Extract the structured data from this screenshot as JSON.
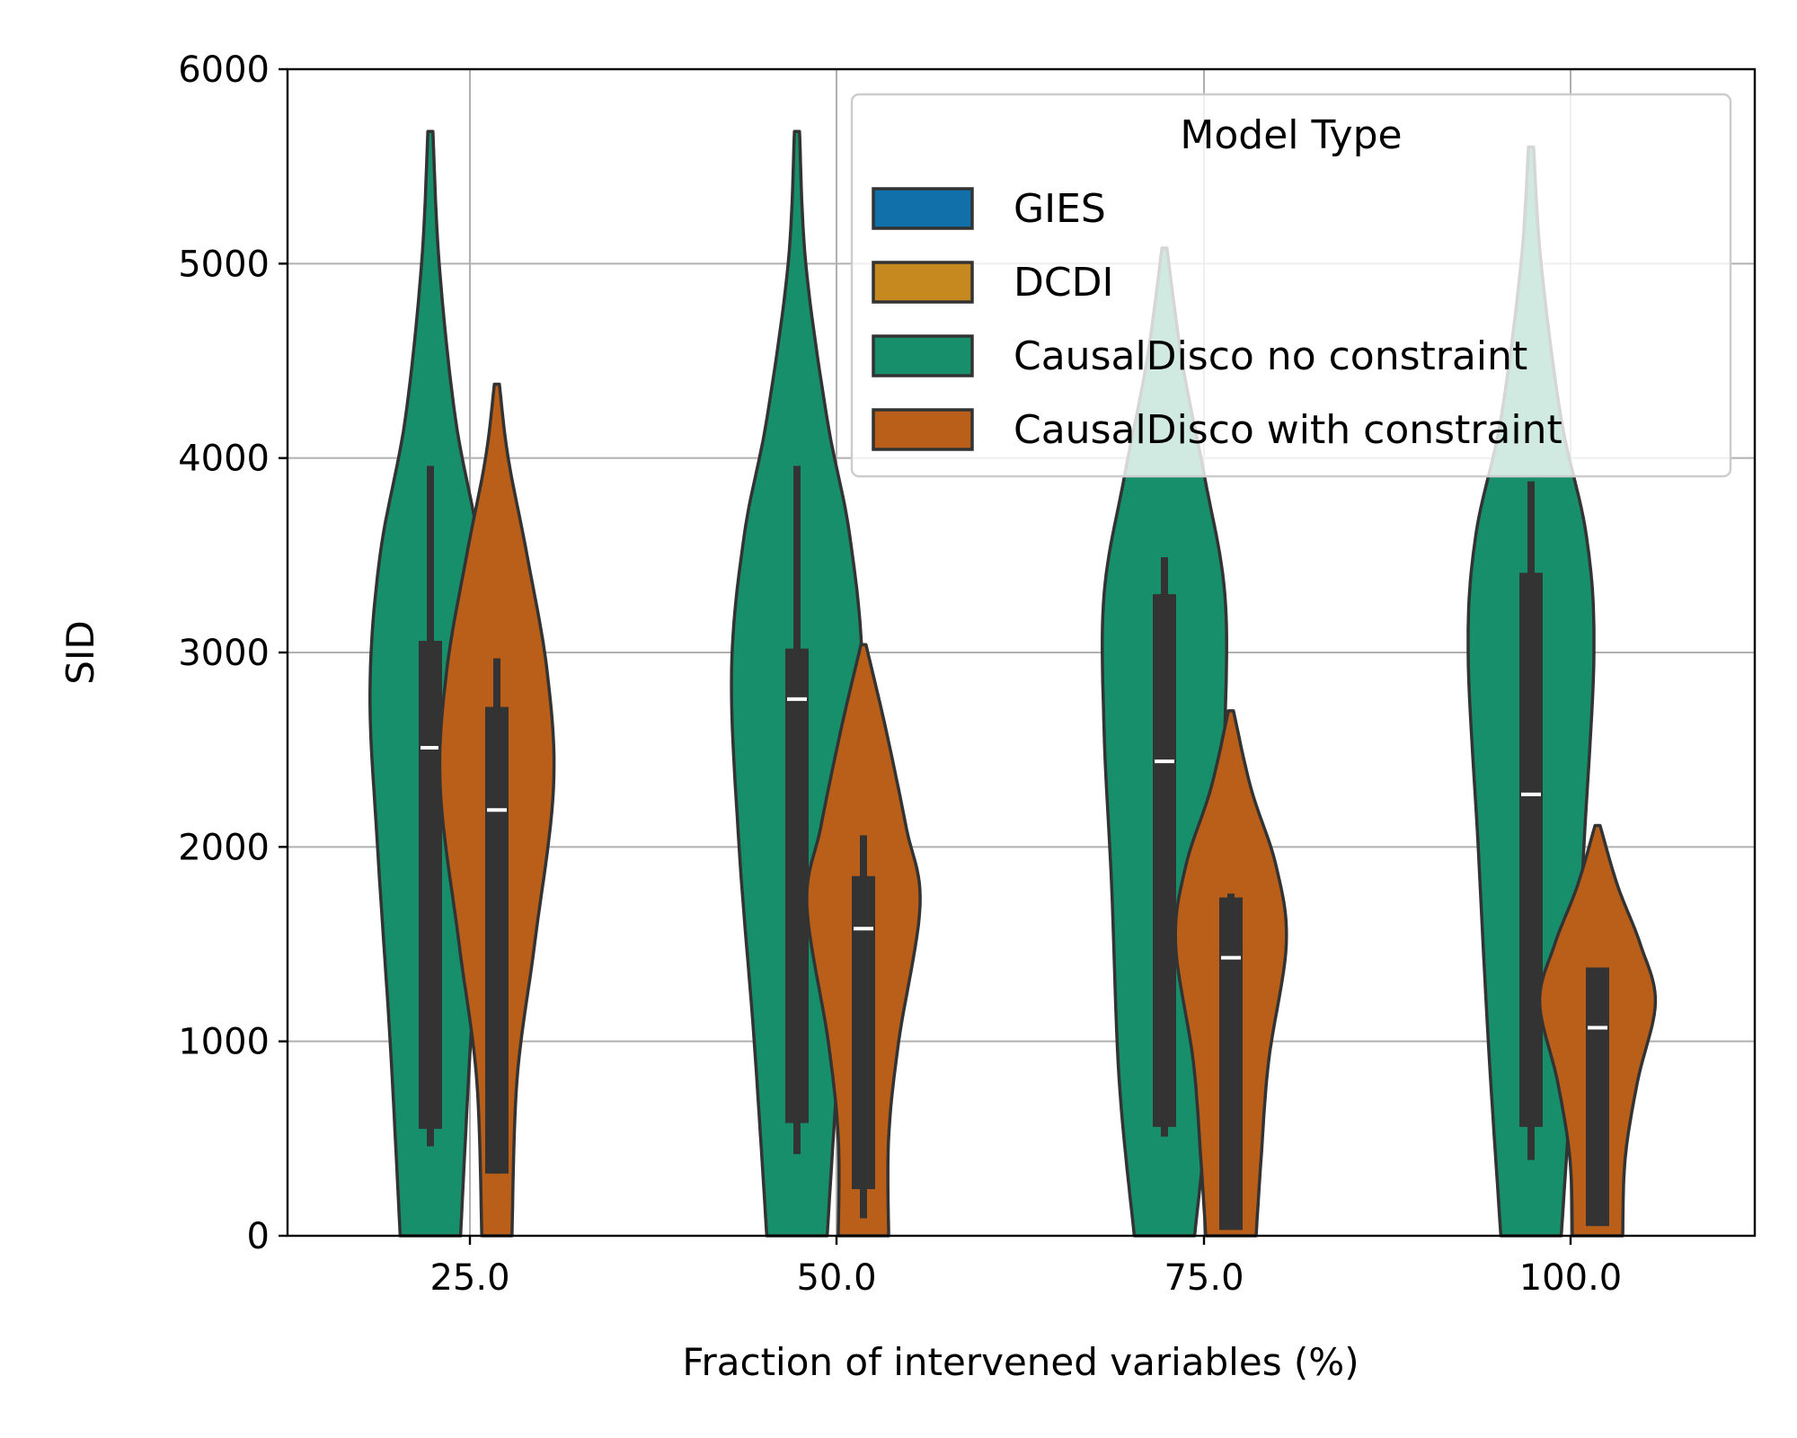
{
  "chart_data": {
    "type": "violin",
    "xlabel": "Fraction of intervened variables (%)",
    "ylabel": "SID",
    "ylim": [
      0,
      6000
    ],
    "yticks": [
      0,
      1000,
      2000,
      3000,
      4000,
      5000,
      6000
    ],
    "ytick_labels": [
      "0",
      "1000",
      "2000",
      "3000",
      "4000",
      "5000",
      "6000"
    ],
    "categories": [
      "25.0",
      "50.0",
      "75.0",
      "100.0"
    ],
    "grid": true,
    "legend": {
      "title": "Model Type",
      "placement": "top-right",
      "entries": [
        {
          "label": "GIES",
          "color": "#1170aa"
        },
        {
          "label": "DCDI",
          "color": "#c5891f"
        },
        {
          "label": "CausalDisco no constraint",
          "color": "#178f6a"
        },
        {
          "label": "CausalDisco with constraint",
          "color": "#ba5f1a"
        }
      ]
    },
    "series": [
      {
        "name": "CausalDisco no constraint",
        "color": "#178f6a",
        "violins": [
          {
            "category": "25.0",
            "min": 0,
            "max": 5680,
            "median": 2510,
            "q1": 550,
            "q3": 3060,
            "wlo": 460,
            "whi": 3960,
            "profile": [
              [
                0,
                0.24
              ],
              [
                1000,
                0.32
              ],
              [
                2000,
                0.42
              ],
              [
                2800,
                0.48
              ],
              [
                3500,
                0.4
              ],
              [
                4200,
                0.2
              ],
              [
                5000,
                0.07
              ],
              [
                5680,
                0.02
              ]
            ]
          },
          {
            "category": "50.0",
            "min": 0,
            "max": 5680,
            "median": 2760,
            "q1": 580,
            "q3": 3020,
            "wlo": 420,
            "whi": 3960,
            "profile": [
              [
                0,
                0.24
              ],
              [
                1000,
                0.34
              ],
              [
                2000,
                0.46
              ],
              [
                2900,
                0.52
              ],
              [
                3600,
                0.42
              ],
              [
                4200,
                0.24
              ],
              [
                5000,
                0.07
              ],
              [
                5680,
                0.02
              ]
            ]
          },
          {
            "category": "75.0",
            "min": 0,
            "max": 5080,
            "median": 2440,
            "q1": 560,
            "q3": 3300,
            "wlo": 510,
            "whi": 3490,
            "profile": [
              [
                0,
                0.24
              ],
              [
                800,
                0.36
              ],
              [
                1800,
                0.42
              ],
              [
                2600,
                0.48
              ],
              [
                3300,
                0.48
              ],
              [
                3900,
                0.32
              ],
              [
                4500,
                0.14
              ],
              [
                5080,
                0.02
              ]
            ]
          },
          {
            "category": "100.0",
            "min": 0,
            "max": 5600,
            "median": 2270,
            "q1": 560,
            "q3": 3410,
            "wlo": 390,
            "whi": 3880,
            "profile": [
              [
                0,
                0.24
              ],
              [
                1000,
                0.34
              ],
              [
                2000,
                0.42
              ],
              [
                3000,
                0.5
              ],
              [
                3600,
                0.44
              ],
              [
                4200,
                0.24
              ],
              [
                5000,
                0.08
              ],
              [
                5600,
                0.02
              ]
            ]
          }
        ]
      },
      {
        "name": "CausalDisco with constraint",
        "color": "#ba5f1a",
        "violins": [
          {
            "category": "25.0",
            "min": 0,
            "max": 4380,
            "median": 2190,
            "q1": 320,
            "q3": 2720,
            "wlo": 320,
            "whi": 2970,
            "profile": [
              [
                0,
                0.12
              ],
              [
                800,
                0.16
              ],
              [
                1500,
                0.3
              ],
              [
                2300,
                0.45
              ],
              [
                2900,
                0.4
              ],
              [
                3500,
                0.24
              ],
              [
                4000,
                0.09
              ],
              [
                4380,
                0.02
              ]
            ]
          },
          {
            "category": "50.0",
            "min": 0,
            "max": 3040,
            "median": 1580,
            "q1": 240,
            "q3": 1850,
            "wlo": 90,
            "whi": 2060,
            "profile": [
              [
                0,
                0.2
              ],
              [
                500,
                0.2
              ],
              [
                1000,
                0.28
              ],
              [
                1700,
                0.45
              ],
              [
                2100,
                0.34
              ],
              [
                2600,
                0.18
              ],
              [
                3040,
                0.02
              ]
            ]
          },
          {
            "category": "75.0",
            "min": 0,
            "max": 2700,
            "median": 1430,
            "q1": 30,
            "q3": 1740,
            "wlo": 30,
            "whi": 1760,
            "profile": [
              [
                0,
                0.2
              ],
              [
                400,
                0.24
              ],
              [
                900,
                0.3
              ],
              [
                1500,
                0.44
              ],
              [
                1900,
                0.36
              ],
              [
                2300,
                0.16
              ],
              [
                2700,
                0.02
              ]
            ]
          },
          {
            "category": "100.0",
            "min": 0,
            "max": 2110,
            "median": 1070,
            "q1": 50,
            "q3": 1380,
            "wlo": 50,
            "whi": 1380,
            "profile": [
              [
                0,
                0.2
              ],
              [
                400,
                0.22
              ],
              [
                800,
                0.32
              ],
              [
                1200,
                0.46
              ],
              [
                1500,
                0.34
              ],
              [
                1800,
                0.16
              ],
              [
                2110,
                0.02
              ]
            ]
          }
        ]
      }
    ]
  }
}
